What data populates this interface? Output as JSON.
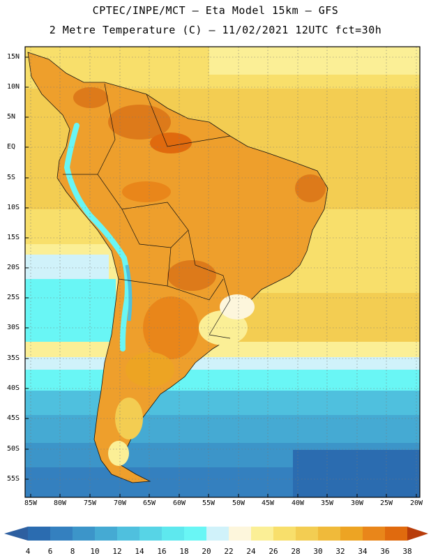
{
  "header": {
    "line1": "CPTEC/INPE/MCT –  Eta Model 15km – GFS",
    "line2": "2 Metre Temperature (C) – 11/02/2021 12UTC fct=30h"
  },
  "axes": {
    "lat_labels": [
      "15N",
      "10N",
      "5N",
      "EQ",
      "5S",
      "10S",
      "15S",
      "20S",
      "25S",
      "30S",
      "35S",
      "40S",
      "45S",
      "50S",
      "55S"
    ],
    "lon_labels": [
      "85W",
      "80W",
      "75W",
      "70W",
      "65W",
      "60W",
      "55W",
      "50W",
      "45W",
      "40W",
      "35W",
      "30W",
      "25W",
      "20W"
    ]
  },
  "colorbar": {
    "labels": [
      "4",
      "6",
      "8",
      "10",
      "12",
      "14",
      "16",
      "18",
      "20",
      "22",
      "24",
      "26",
      "28",
      "30",
      "32",
      "34",
      "36",
      "38"
    ],
    "colors": [
      "#2b6cb0",
      "#3480bf",
      "#3c95c9",
      "#45aad3",
      "#4fc0de",
      "#57d4e6",
      "#5ee8ee",
      "#69f6f5",
      "#d0f2fa",
      "#fdf6dc",
      "#fbef96",
      "#f8df6b",
      "#f3cd52",
      "#f0ba3a",
      "#eda423",
      "#e9861a",
      "#e06a0e",
      "#c84a05"
    ],
    "left_arrow_color": "#2d5fa0",
    "right_arrow_color": "#b83c0a"
  },
  "palette": {
    "ocean_hot": "#f2c94c",
    "land_base": "#ee9f2c",
    "land_hot": "#dd7a1a",
    "andes_cold": "#6ad9ee",
    "southern_ocean": "#2c66aa"
  }
}
